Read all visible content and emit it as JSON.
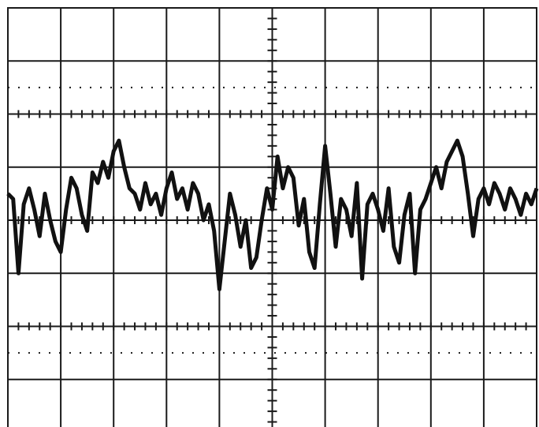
{
  "chart_data": {
    "type": "line",
    "x": [
      0,
      0.1,
      0.2,
      0.3,
      0.4,
      0.5,
      0.6,
      0.7,
      0.8,
      0.9,
      1,
      1.1,
      1.2,
      1.3,
      1.4,
      1.5,
      1.6,
      1.7,
      1.8,
      1.9,
      2,
      2.1,
      2.2,
      2.3,
      2.4,
      2.5,
      2.6,
      2.7,
      2.8,
      2.9,
      3,
      3.1,
      3.2,
      3.3,
      3.4,
      3.5,
      3.6,
      3.7,
      3.8,
      3.9,
      4,
      4.1,
      4.2,
      4.3,
      4.4,
      4.5,
      4.6,
      4.7,
      4.8,
      4.9,
      5,
      5.1,
      5.2,
      5.3,
      5.4,
      5.5,
      5.6,
      5.7,
      5.8,
      5.9,
      6,
      6.1,
      6.2,
      6.3,
      6.4,
      6.5,
      6.6,
      6.7,
      6.8,
      6.9,
      7,
      7.1,
      7.2,
      7.3,
      7.4,
      7.5,
      7.6,
      7.7,
      7.8,
      7.9,
      8,
      8.1,
      8.2,
      8.3,
      8.4,
      8.5,
      8.6,
      8.7,
      8.8,
      8.9,
      9,
      9.1,
      9.2,
      9.3,
      9.4,
      9.5,
      9.6,
      9.7,
      9.8,
      9.9,
      10
    ],
    "series": [
      {
        "color": "#111111",
        "values": [
          0.5,
          0.4,
          -1.0,
          0.3,
          0.6,
          0.2,
          -0.3,
          0.5,
          0.0,
          -0.4,
          -0.6,
          0.2,
          0.8,
          0.6,
          0.1,
          -0.2,
          0.9,
          0.7,
          1.1,
          0.8,
          1.3,
          1.5,
          1.0,
          0.6,
          0.5,
          0.2,
          0.7,
          0.3,
          0.5,
          0.1,
          0.6,
          0.9,
          0.4,
          0.6,
          0.2,
          0.7,
          0.5,
          0.0,
          0.3,
          -0.2,
          -1.3,
          -0.4,
          0.5,
          0.1,
          -0.5,
          0.0,
          -0.9,
          -0.7,
          0.0,
          0.6,
          0.2,
          1.2,
          0.6,
          1.0,
          0.8,
          -0.1,
          0.4,
          -0.6,
          -0.9,
          0.3,
          1.4,
          0.5,
          -0.5,
          0.4,
          0.2,
          -0.3,
          0.7,
          -1.1,
          0.3,
          0.5,
          0.2,
          -0.2,
          0.6,
          -0.5,
          -0.8,
          0.1,
          0.5,
          -1.0,
          0.2,
          0.4,
          0.7,
          1.0,
          0.6,
          1.1,
          1.3,
          1.5,
          1.2,
          0.5,
          -0.3,
          0.4,
          0.6,
          0.3,
          0.7,
          0.5,
          0.2,
          0.6,
          0.4,
          0.1,
          0.5,
          0.3,
          0.6
        ]
      }
    ],
    "xlim": [
      0,
      10
    ],
    "ylim": [
      -4,
      4
    ],
    "xticks": [
      0,
      1,
      2,
      3,
      4,
      5,
      6,
      7,
      8,
      9,
      10
    ],
    "yticks": [
      -4,
      -3,
      -2,
      -1,
      0,
      1,
      2,
      3,
      4
    ],
    "grid": true
  }
}
